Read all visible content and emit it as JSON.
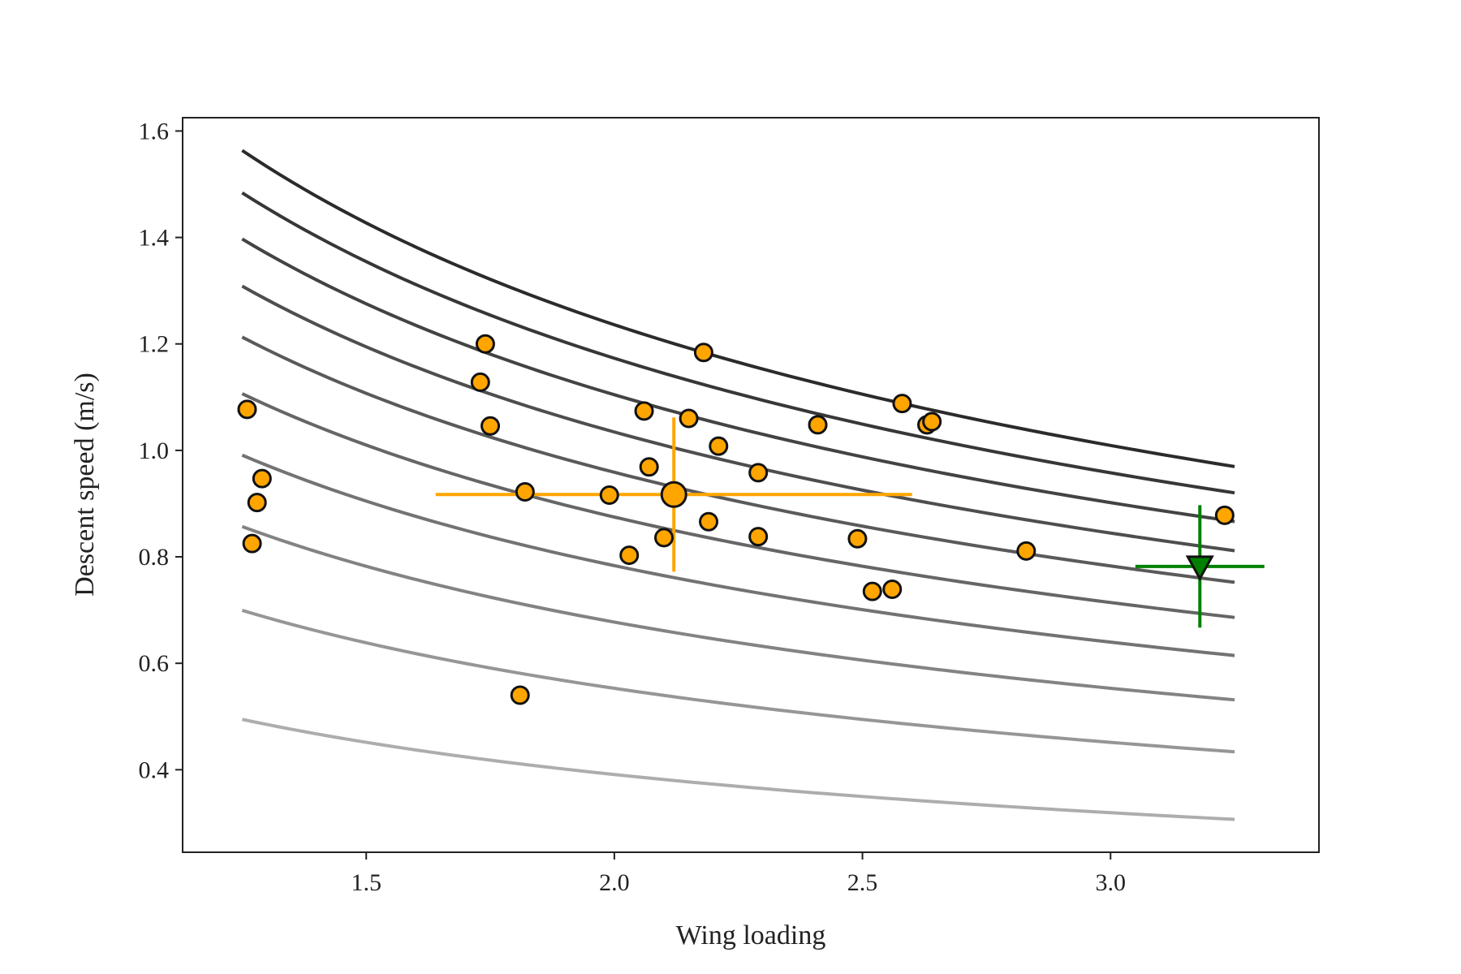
{
  "chart_data": {
    "type": "scatter",
    "title": "",
    "xlabel": "Wing loading",
    "ylabel": "Descent speed (m/s)",
    "xlim": [
      1.13,
      3.42
    ],
    "ylim": [
      0.245,
      1.625
    ],
    "xticks": [
      1.5,
      2.0,
      2.5,
      3.0
    ],
    "yticks": [
      0.4,
      0.6,
      0.8,
      1.0,
      1.2,
      1.4,
      1.6
    ],
    "xtick_labels": [
      "1.5",
      "2.0",
      "2.5",
      "3.0"
    ],
    "ytick_labels": [
      "0.4",
      "0.6",
      "0.8",
      "1.0",
      "1.2",
      "1.4",
      "1.6"
    ],
    "grid": false,
    "legend": "none",
    "curves": {
      "description_form": "y = k * x^-0.5",
      "x_range": [
        1.25,
        3.25
      ],
      "k_values": [
        1.748,
        1.659,
        1.562,
        1.463,
        1.356,
        1.237,
        1.108,
        0.958,
        0.782,
        0.553
      ],
      "colors": [
        "#2b2b2b",
        "#373737",
        "#434343",
        "#4e4e4e",
        "#5a5a5a",
        "#666666",
        "#737373",
        "#838383",
        "#969696",
        "#adadad"
      ]
    },
    "series": [
      {
        "marker": "circle",
        "color": "#ffa500",
        "edge_color": "#111111",
        "points": [
          [
            1.26,
            1.077
          ],
          [
            1.28,
            0.902
          ],
          [
            1.29,
            0.947
          ],
          [
            1.27,
            0.825
          ],
          [
            1.74,
            1.2
          ],
          [
            1.73,
            1.128
          ],
          [
            1.75,
            1.046
          ],
          [
            1.81,
            0.54
          ],
          [
            1.82,
            0.922
          ],
          [
            1.99,
            0.916
          ],
          [
            2.03,
            0.803
          ],
          [
            2.06,
            1.074
          ],
          [
            2.07,
            0.969
          ],
          [
            2.1,
            0.836
          ],
          [
            2.15,
            1.06
          ],
          [
            2.18,
            1.184
          ],
          [
            2.19,
            0.866
          ],
          [
            2.21,
            1.008
          ],
          [
            2.29,
            0.958
          ],
          [
            2.29,
            0.838
          ],
          [
            2.41,
            1.048
          ],
          [
            2.49,
            0.834
          ],
          [
            2.52,
            0.735
          ],
          [
            2.56,
            0.739
          ],
          [
            2.58,
            1.088
          ],
          [
            2.63,
            1.048
          ],
          [
            2.64,
            1.054
          ],
          [
            2.83,
            0.811
          ],
          [
            3.23,
            0.878
          ]
        ]
      },
      {
        "marker": "circle-large",
        "color": "#ffa500",
        "edge_color": "#111111",
        "points": [
          [
            2.12,
            0.917
          ]
        ],
        "xerr": [
          0.48
        ],
        "yerr": [
          0.145
        ]
      },
      {
        "marker": "triangle-down",
        "color": "#008000",
        "edge_color": "#111111",
        "points": [
          [
            3.18,
            0.782
          ]
        ],
        "xerr": [
          0.13
        ],
        "yerr": [
          0.115
        ]
      }
    ]
  }
}
